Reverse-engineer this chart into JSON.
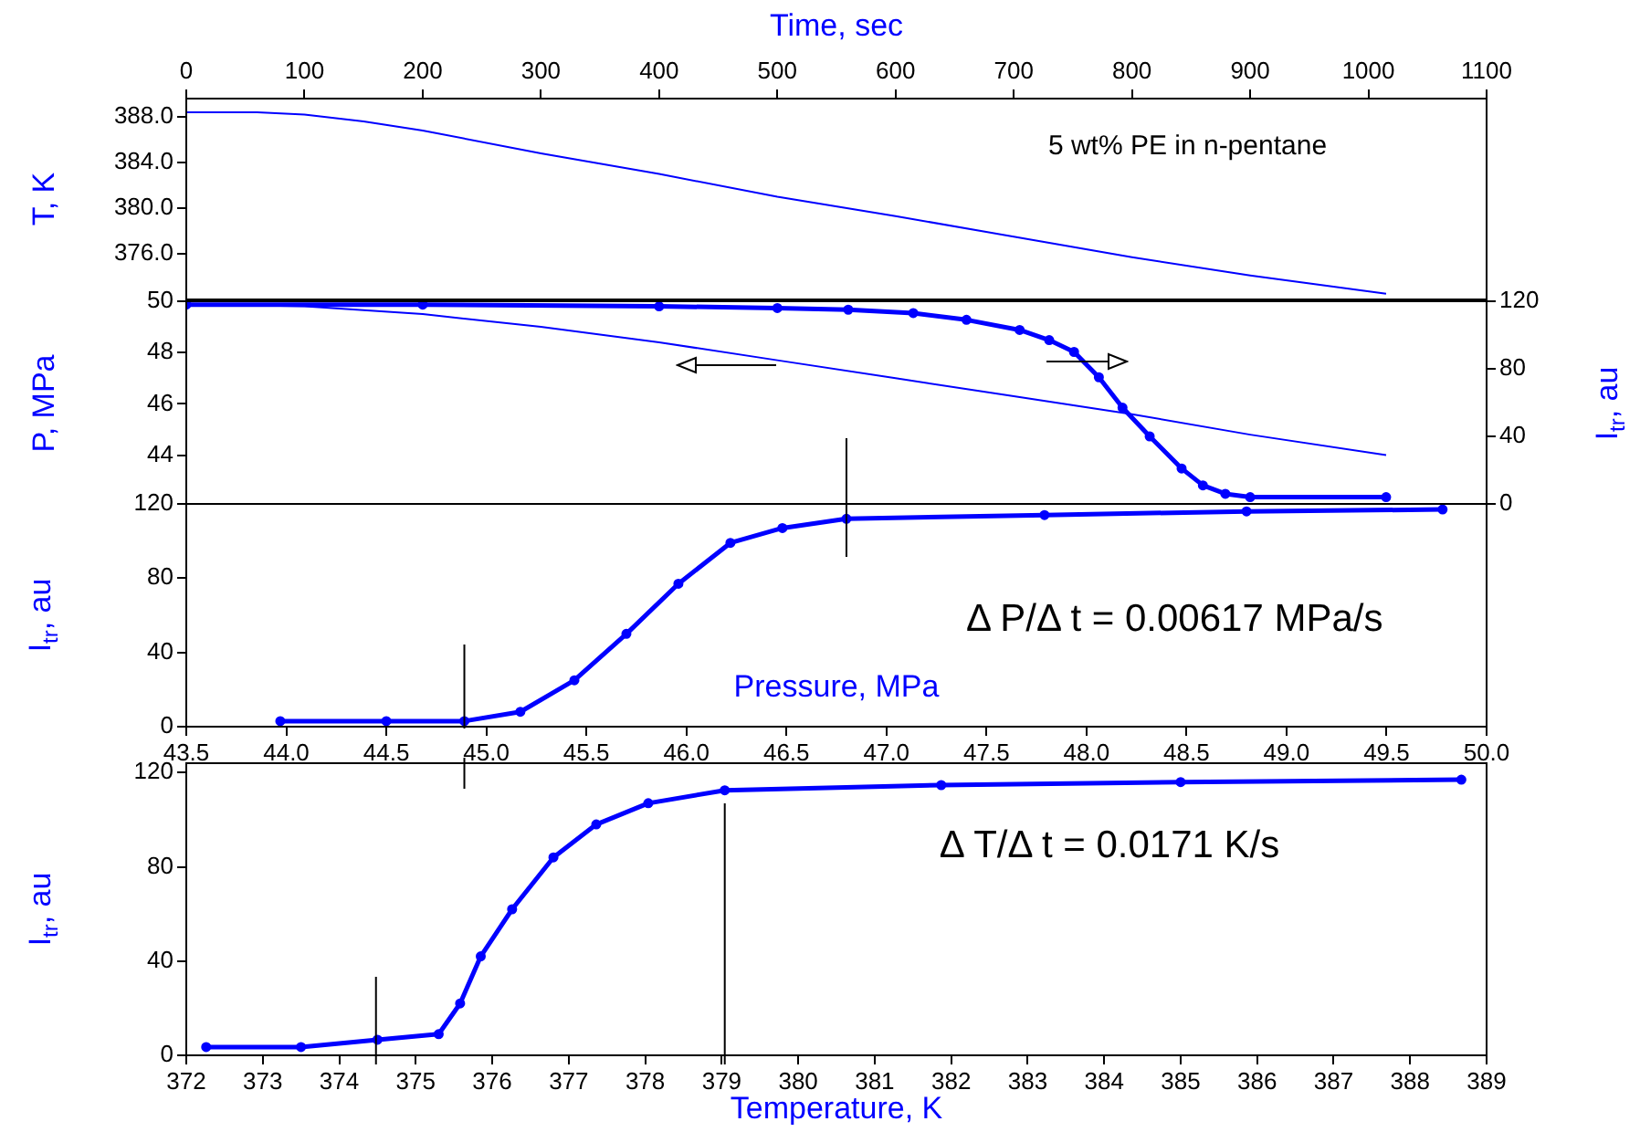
{
  "chart_data": [
    {
      "type": "line",
      "xlabel": "Time, sec",
      "ylabel": "T, K",
      "xlim": [
        0,
        1100
      ],
      "xticks": [
        0,
        100,
        200,
        300,
        400,
        500,
        600,
        700,
        800,
        900,
        1000,
        1100
      ],
      "ylim": [
        372.0,
        389.6
      ],
      "yticks": [
        {
          "value": 376,
          "label": "376.0"
        },
        {
          "value": 380,
          "label": "380.0"
        },
        {
          "value": 384,
          "label": "384.0"
        },
        {
          "value": 388,
          "label": "388.0"
        }
      ],
      "grid": false,
      "legend": false,
      "annotations": [
        "5 wt% PE in n-pentane"
      ],
      "series": [
        {
          "color": "#0000ff",
          "marker": "none",
          "x": [
            0,
            60,
            100,
            150,
            200,
            300,
            400,
            500,
            600,
            700,
            800,
            900,
            1015
          ],
          "values": [
            388.4,
            388.4,
            388.2,
            387.6,
            386.8,
            384.8,
            383.0,
            381.0,
            379.3,
            377.5,
            375.7,
            374.1,
            372.5
          ]
        }
      ]
    },
    {
      "type": "line",
      "ylabel": "P, MPa",
      "y2label": "I$_{tr}$, au",
      "xlim": [
        0,
        1100
      ],
      "xticks": [
        0,
        100,
        200,
        300,
        400,
        500,
        600,
        700,
        800,
        900,
        1000,
        1100
      ],
      "ylim": [
        42.1,
        50
      ],
      "yticks": [
        44,
        46,
        48,
        50
      ],
      "y2lim": [
        0,
        120
      ],
      "y2ticks": [
        0,
        40,
        80,
        120
      ],
      "tick_labels": "y",
      "grid": false,
      "legend": false,
      "series": [
        {
          "color": "#0000ff",
          "marker": "none",
          "x": [
            0,
            100,
            200,
            300,
            400,
            500,
            600,
            700,
            800,
            900,
            1015
          ],
          "values": [
            49.9,
            49.8,
            49.5,
            49.0,
            48.4,
            47.7,
            47.0,
            46.3,
            45.6,
            44.8,
            44.0
          ]
        },
        {
          "color": "#0000ff",
          "marker": "circle",
          "axis": "y2",
          "x": [
            0,
            200,
            400,
            500,
            560,
            615,
            660,
            705,
            730,
            751,
            772,
            792,
            815,
            842,
            860,
            879,
            900,
            1015
          ],
          "values": [
            118,
            118,
            117,
            116,
            115,
            113,
            109,
            103,
            97,
            90,
            75,
            57,
            40,
            21,
            11,
            6,
            4,
            4
          ]
        }
      ]
    },
    {
      "type": "line",
      "xlabel": "Pressure, MPa",
      "ylabel": "I$_{tr}$, au",
      "xlim": [
        43.5,
        50.0
      ],
      "xticks": [
        43.5,
        {
          "value": 44,
          "label": "44.0"
        },
        44.5,
        {
          "value": 45,
          "label": "45.0"
        },
        45.5,
        {
          "value": 46,
          "label": "46.0"
        },
        46.5,
        {
          "value": 47,
          "label": "47.0"
        },
        47.5,
        {
          "value": 48,
          "label": "48.0"
        },
        48.5,
        {
          "value": 49,
          "label": "49.0"
        },
        49.5,
        {
          "value": 50,
          "label": "50.0"
        }
      ],
      "ylim": [
        0,
        120
      ],
      "yticks": [
        0,
        40,
        80,
        120
      ],
      "grid": false,
      "legend": false,
      "annotations": [
        "Δ P/Δ t = 0.00617 MPa/s"
      ],
      "ref_lines": [
        {
          "axis": "x",
          "value": 44.89,
          "color": "#000000"
        },
        {
          "axis": "x",
          "value": 46.8,
          "color": "#000000"
        }
      ],
      "series": [
        {
          "color": "#0000ff",
          "marker": "circle",
          "x": [
            43.97,
            44.5,
            44.89,
            45.17,
            45.44,
            45.7,
            45.96,
            46.22,
            46.48,
            46.8,
            47.79,
            48.8,
            49.78
          ],
          "values": [
            3,
            3,
            3,
            8,
            25,
            50,
            77,
            99,
            107,
            112,
            114,
            116,
            117
          ]
        }
      ]
    },
    {
      "type": "line",
      "xlabel": "Temperature, K",
      "ylabel": "I$_{tr}$, au",
      "xlim": [
        372,
        389
      ],
      "xticks": [
        372,
        373,
        374,
        375,
        376,
        377,
        378,
        379,
        380,
        381,
        382,
        383,
        384,
        385,
        386,
        387,
        388,
        389
      ],
      "ylim": [
        0,
        124
      ],
      "yticks": [
        0,
        40,
        80,
        120
      ],
      "grid": false,
      "legend": false,
      "annotations": [
        "Δ T/Δ t = 0.0171 K/s"
      ],
      "ref_lines": [
        {
          "axis": "x",
          "value": 374.48,
          "color": "#000000"
        },
        {
          "axis": "x",
          "value": 379.04,
          "color": "#000000"
        }
      ],
      "series": [
        {
          "color": "#0000ff",
          "marker": "circle",
          "x": [
            372.26,
            373.5,
            374.5,
            375.3,
            375.58,
            375.85,
            376.26,
            376.8,
            377.36,
            378.04,
            379.04,
            381.87,
            385.0,
            388.67
          ],
          "values": [
            3.5,
            3.5,
            6.6,
            9,
            22,
            42,
            62,
            84,
            98,
            107,
            112.5,
            114.7,
            116,
            117
          ]
        }
      ]
    }
  ]
}
